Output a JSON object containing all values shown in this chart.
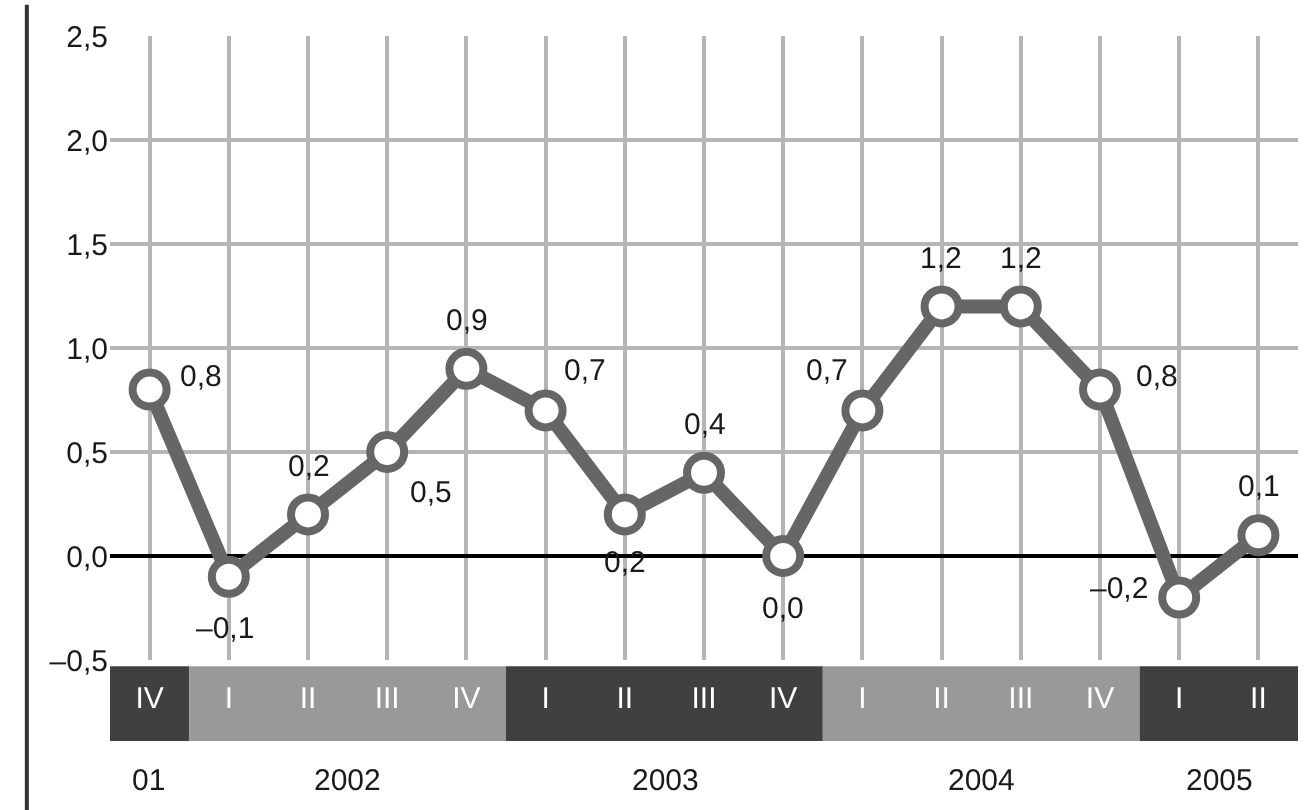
{
  "chart_data": {
    "type": "line",
    "categories": [
      "IV",
      "I",
      "II",
      "III",
      "IV",
      "I",
      "II",
      "III",
      "IV",
      "I",
      "II",
      "III",
      "IV",
      "I",
      "II"
    ],
    "series": [
      {
        "color": "#666666",
        "values": [
          0.8,
          -0.1,
          0.2,
          0.5,
          0.9,
          0.7,
          0.2,
          0.4,
          0.0,
          0.7,
          1.2,
          1.2,
          0.8,
          -0.2,
          0.1
        ]
      }
    ],
    "value_labels": [
      "0,8",
      "–0,1",
      "0,2",
      "0,5",
      "0,9",
      "0,7",
      "0,2",
      "0,4",
      "0,0",
      "0,7",
      "1,2",
      "1,2",
      "0,8",
      "–0,2",
      "0,1"
    ],
    "ylim": [
      -0.5,
      2.5
    ],
    "yticks": [
      {
        "value": -0.5,
        "label": "–0,5"
      },
      {
        "value": 0,
        "label": "0,0"
      },
      {
        "value": 0.5,
        "label": "0,5"
      },
      {
        "value": 1,
        "label": "1,0"
      },
      {
        "value": 1.5,
        "label": "1,5"
      },
      {
        "value": 2,
        "label": "2,0"
      },
      {
        "value": 2.5,
        "label": "2,5"
      }
    ],
    "ref_lines": [
      {
        "axis": "y",
        "value": 0,
        "color": "#000000"
      }
    ],
    "annotations": [
      "01",
      "2002",
      "2003",
      "2004",
      "2005"
    ],
    "grid": true,
    "legend": false,
    "marker": "circle",
    "line_style": "solid"
  }
}
